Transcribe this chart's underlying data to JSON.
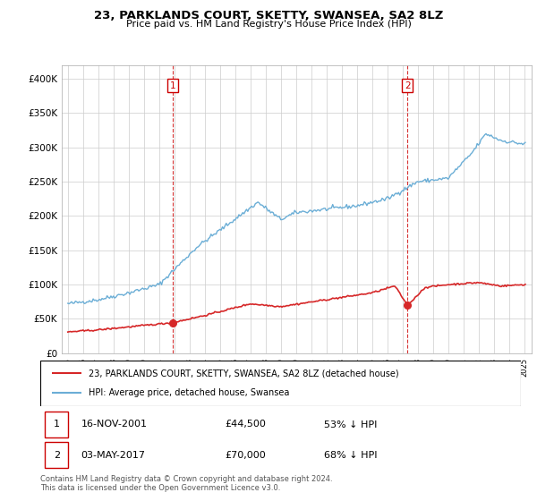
{
  "title": "23, PARKLANDS COURT, SKETTY, SWANSEA, SA2 8LZ",
  "subtitle": "Price paid vs. HM Land Registry's House Price Index (HPI)",
  "ylabel_ticks": [
    "£0",
    "£50K",
    "£100K",
    "£150K",
    "£200K",
    "£250K",
    "£300K",
    "£350K",
    "£400K"
  ],
  "ytick_values": [
    0,
    50000,
    100000,
    150000,
    200000,
    250000,
    300000,
    350000,
    400000
  ],
  "ylim": [
    0,
    420000
  ],
  "hpi_color": "#6baed6",
  "price_color": "#d62728",
  "vline_color": "#cc0000",
  "marker1_year": 2001.88,
  "marker1_price": 44500,
  "marker1_label": "1",
  "marker1_date": "16-NOV-2001",
  "marker1_pct": "53% ↓ HPI",
  "marker2_year": 2017.34,
  "marker2_price": 70000,
  "marker2_label": "2",
  "marker2_date": "03-MAY-2017",
  "marker2_pct": "68% ↓ HPI",
  "legend_label1": "23, PARKLANDS COURT, SKETTY, SWANSEA, SA2 8LZ (detached house)",
  "legend_label2": "HPI: Average price, detached house, Swansea",
  "footer": "Contains HM Land Registry data © Crown copyright and database right 2024.\nThis data is licensed under the Open Government Licence v3.0.",
  "grid_color": "#cccccc",
  "hpi_anchors_x": [
    1995.0,
    1997.0,
    1999.0,
    2001.0,
    2003.5,
    2007.5,
    2009.0,
    2010.0,
    2012.0,
    2014.0,
    2016.0,
    2018.0,
    2020.0,
    2021.5,
    2022.5,
    2023.5,
    2025.0
  ],
  "hpi_anchors_y": [
    72000,
    78000,
    88000,
    100000,
    155000,
    220000,
    195000,
    205000,
    210000,
    215000,
    225000,
    250000,
    255000,
    290000,
    320000,
    310000,
    305000
  ],
  "price_anchors_x": [
    1995.0,
    1997.0,
    2001.88,
    2004.0,
    2007.0,
    2009.0,
    2012.0,
    2015.0,
    2016.5,
    2017.34,
    2018.5,
    2020.0,
    2022.0,
    2023.5,
    2025.0
  ],
  "price_anchors_y": [
    31000,
    34000,
    44500,
    55000,
    72000,
    68000,
    78000,
    88000,
    98000,
    70000,
    96000,
    100000,
    103000,
    98000,
    100000
  ],
  "noise_seed": 42,
  "hpi_noise": 1500,
  "price_noise": 600
}
